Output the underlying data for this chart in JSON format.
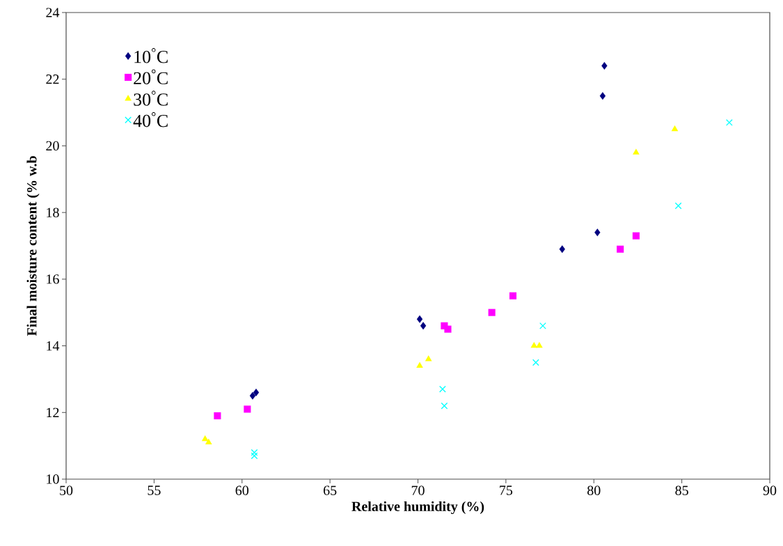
{
  "chart_data": {
    "type": "scatter",
    "xlabel": "Relative humidity (%)",
    "ylabel": "Final moisture content (% w.b",
    "xlim": [
      50,
      90
    ],
    "ylim": [
      10,
      24
    ],
    "xticks": [
      50,
      55,
      60,
      65,
      70,
      75,
      80,
      85,
      90
    ],
    "yticks": [
      10,
      12,
      14,
      16,
      18,
      20,
      22,
      24
    ],
    "legend": "top left",
    "grid": false,
    "series": [
      {
        "name": "10$^{°}$C",
        "color": "#000080",
        "marker": "diamond",
        "x": [
          60.6,
          60.8,
          70.1,
          70.3,
          80.6,
          80.5,
          80.2,
          78.2
        ],
        "values": [
          12.5,
          12.6,
          14.8,
          14.6,
          22.4,
          21.5,
          17.4,
          16.9
        ]
      },
      {
        "name": "20$^{°}$C",
        "color": "#ff00ff",
        "marker": "square",
        "x": [
          58.6,
          60.3,
          71.5,
          71.7,
          74.2,
          75.4,
          81.5,
          82.4
        ],
        "values": [
          11.9,
          12.1,
          14.6,
          14.5,
          15.0,
          15.5,
          16.9,
          17.3
        ]
      },
      {
        "name": "30$^{°}$C",
        "color": "#ffff00",
        "marker": "triangle",
        "x": [
          57.9,
          58.1,
          70.1,
          70.6,
          76.6,
          76.9,
          82.4,
          84.6
        ],
        "values": [
          11.2,
          11.1,
          13.4,
          13.6,
          14.0,
          14.0,
          19.8,
          20.5
        ]
      },
      {
        "name": "40$^{°}$C",
        "color": "#00ffff",
        "marker": "cross",
        "x": [
          60.7,
          60.7,
          71.4,
          71.5,
          77.1,
          76.7,
          84.8,
          87.7
        ],
        "values": [
          10.8,
          10.7,
          12.7,
          12.2,
          14.6,
          13.5,
          18.2,
          20.7
        ]
      }
    ]
  }
}
